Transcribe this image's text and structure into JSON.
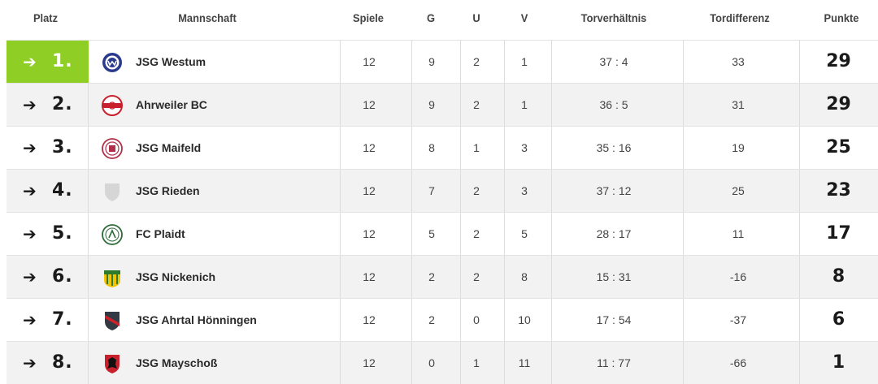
{
  "headers": {
    "platz": "Platz",
    "mannschaft": "Mannschaft",
    "spiele": "Spiele",
    "g": "G",
    "u": "U",
    "v": "V",
    "torverhaeltnis": "Torverhältnis",
    "tordifferenz": "Tordifferenz",
    "punkte": "Punkte"
  },
  "colors": {
    "leader_highlight": "#8fce24",
    "row_alt": "#f2f2f2"
  },
  "rows": [
    {
      "arrow": "➔",
      "rank": "1.",
      "logo": "westum-crest-icon",
      "team": "JSG Westum",
      "spiele": "12",
      "g": "9",
      "u": "2",
      "v": "1",
      "tore": "37 : 4",
      "diff": "33",
      "punkte": "29"
    },
    {
      "arrow": "➔",
      "rank": "2.",
      "logo": "ahrweiler-crest-icon",
      "team": "Ahrweiler BC",
      "spiele": "12",
      "g": "9",
      "u": "2",
      "v": "1",
      "tore": "36 : 5",
      "diff": "31",
      "punkte": "29"
    },
    {
      "arrow": "➔",
      "rank": "3.",
      "logo": "maifeld-crest-icon",
      "team": "JSG Maifeld",
      "spiele": "12",
      "g": "8",
      "u": "1",
      "v": "3",
      "tore": "35 : 16",
      "diff": "19",
      "punkte": "25"
    },
    {
      "arrow": "➔",
      "rank": "4.",
      "logo": "placeholder-shield-icon",
      "team": "JSG Rieden",
      "spiele": "12",
      "g": "7",
      "u": "2",
      "v": "3",
      "tore": "37 : 12",
      "diff": "25",
      "punkte": "23"
    },
    {
      "arrow": "➔",
      "rank": "5.",
      "logo": "plaidt-crest-icon",
      "team": "FC Plaidt",
      "spiele": "12",
      "g": "5",
      "u": "2",
      "v": "5",
      "tore": "28 : 17",
      "diff": "11",
      "punkte": "17"
    },
    {
      "arrow": "➔",
      "rank": "6.",
      "logo": "nickenich-crest-icon",
      "team": "JSG Nickenich",
      "spiele": "12",
      "g": "2",
      "u": "2",
      "v": "8",
      "tore": "15 : 31",
      "diff": "-16",
      "punkte": "8"
    },
    {
      "arrow": "➔",
      "rank": "7.",
      "logo": "hoenningen-crest-icon",
      "team": "JSG Ahrtal Hönningen",
      "spiele": "12",
      "g": "2",
      "u": "0",
      "v": "10",
      "tore": "17 : 54",
      "diff": "-37",
      "punkte": "6"
    },
    {
      "arrow": "➔",
      "rank": "8.",
      "logo": "mayschoss-crest-icon",
      "team": "JSG Mayschoß",
      "spiele": "12",
      "g": "0",
      "u": "1",
      "v": "11",
      "tore": "11 : 77",
      "diff": "-66",
      "punkte": "1"
    }
  ]
}
